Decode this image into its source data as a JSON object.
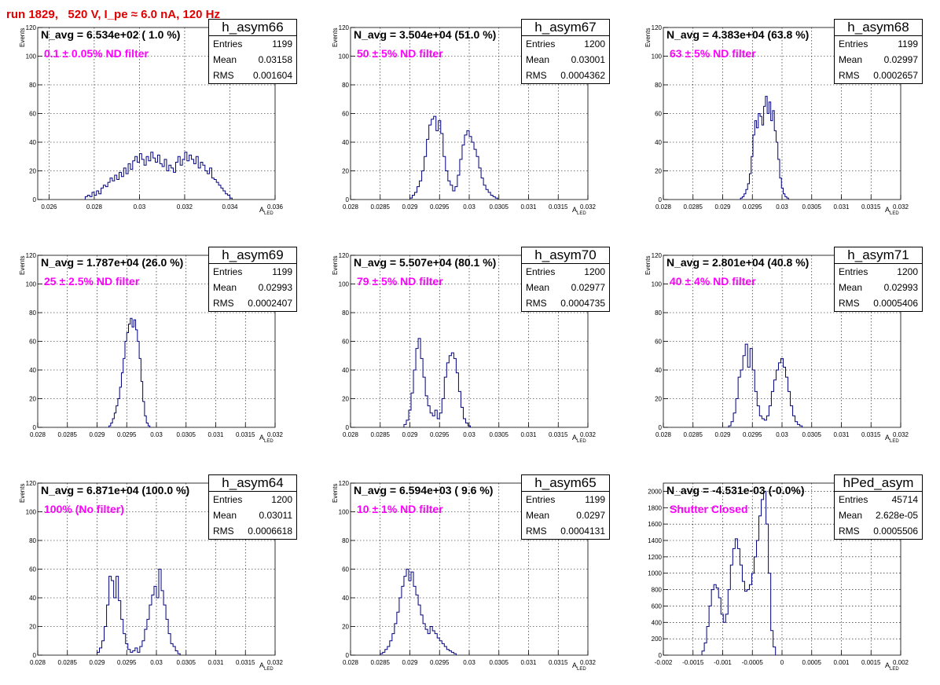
{
  "header": {
    "run_title": "run 1829,   520 V, I_pe ≈ 6.0 nA, 120 Hz"
  },
  "colors": {
    "title": "#e00000",
    "filter_text": "#ff00ff",
    "hist_line": "#00007f",
    "grid": "#000000"
  },
  "chart_data": [
    {
      "type": "histogram",
      "name": "h_asym66",
      "navg": "N_avg = 6.534e+02 ( 1.0 %)",
      "filter": "0.1 ± 0.05% ND filter",
      "stats": {
        "entries": "1199",
        "mean": "0.03158",
        "rms": "0.001604"
      },
      "stat_labels": {
        "entries": "Entries",
        "mean": "Mean",
        "rms": "RMS"
      },
      "xlabel": "A",
      "xlabel_sub": "LED",
      "ylabel": "Events",
      "xlim": [
        0.0255,
        0.036
      ],
      "ylim": [
        0,
        120
      ],
      "xticks": [
        0.026,
        0.028,
        0.03,
        0.032,
        0.034,
        0.036
      ],
      "xtick_labels": [
        "0.026",
        "0.028",
        "0.03",
        "0.032",
        "0.034",
        "0.036"
      ],
      "yticks": [
        0,
        20,
        40,
        60,
        80,
        100,
        120
      ],
      "ytick_labels": [
        "0",
        "20",
        "40",
        "60",
        "80",
        "100",
        "120"
      ],
      "bin_start": 0.0276,
      "bin_width": 0.0001,
      "counts": [
        2,
        3,
        2,
        5,
        3,
        6,
        4,
        8,
        10,
        9,
        12,
        15,
        13,
        17,
        14,
        19,
        16,
        22,
        18,
        25,
        21,
        27,
        30,
        26,
        32,
        28,
        24,
        30,
        27,
        33,
        29,
        26,
        31,
        25,
        23,
        28,
        20,
        24,
        22,
        19,
        26,
        30,
        24,
        28,
        33,
        27,
        31,
        28,
        25,
        30,
        22,
        26,
        24,
        20,
        18,
        22,
        15,
        14,
        12,
        10,
        8,
        6,
        4,
        3,
        1
      ]
    },
    {
      "type": "histogram",
      "name": "h_asym67",
      "navg": "N_avg = 3.504e+04 (51.0 %)",
      "filter": "50 ± 5% ND filter",
      "stats": {
        "entries": "1200",
        "mean": "0.03001",
        "rms": "0.0004362"
      },
      "stat_labels": {
        "entries": "Entries",
        "mean": "Mean",
        "rms": "RMS"
      },
      "xlabel": "A",
      "xlabel_sub": "LED",
      "ylabel": "Events",
      "xlim": [
        0.028,
        0.032
      ],
      "ylim": [
        0,
        120
      ],
      "xticks": [
        0.028,
        0.0285,
        0.029,
        0.0295,
        0.03,
        0.0305,
        0.031,
        0.0315,
        0.032
      ],
      "xtick_labels": [
        "0.028",
        "0.0285",
        "0.029",
        "0.0295",
        "0.03",
        "0.0305",
        "0.031",
        "0.0315",
        "0.032"
      ],
      "yticks": [
        0,
        20,
        40,
        60,
        80,
        100,
        120
      ],
      "ytick_labels": [
        "0",
        "20",
        "40",
        "60",
        "80",
        "100",
        "120"
      ],
      "bin_start": 0.029,
      "bin_width": 4e-05,
      "counts": [
        1,
        3,
        5,
        9,
        13,
        20,
        30,
        42,
        52,
        56,
        58,
        48,
        55,
        46,
        30,
        20,
        13,
        10,
        6,
        9,
        17,
        28,
        38,
        45,
        48,
        44,
        40,
        35,
        30,
        22,
        15,
        10,
        7,
        5,
        3,
        2,
        1
      ]
    },
    {
      "type": "histogram",
      "name": "h_asym68",
      "navg": "N_avg = 4.383e+04 (63.8 %)",
      "filter": "63 ± 5% ND filter",
      "stats": {
        "entries": "1199",
        "mean": "0.02997",
        "rms": "0.0002657"
      },
      "stat_labels": {
        "entries": "Entries",
        "mean": "Mean",
        "rms": "RMS"
      },
      "xlabel": "A",
      "xlabel_sub": "LED",
      "ylabel": "Events",
      "xlim": [
        0.028,
        0.032
      ],
      "ylim": [
        0,
        120
      ],
      "xticks": [
        0.028,
        0.0285,
        0.029,
        0.0295,
        0.03,
        0.0305,
        0.031,
        0.0315,
        0.032
      ],
      "xtick_labels": [
        "0.028",
        "0.0285",
        "0.029",
        "0.0295",
        "0.03",
        "0.0305",
        "0.031",
        "0.0315",
        "0.032"
      ],
      "yticks": [
        0,
        20,
        40,
        60,
        80,
        100,
        120
      ],
      "ytick_labels": [
        "0",
        "20",
        "40",
        "60",
        "80",
        "100",
        "120"
      ],
      "bin_start": 0.0293,
      "bin_width": 3e-05,
      "counts": [
        1,
        2,
        4,
        7,
        11,
        18,
        30,
        45,
        55,
        50,
        60,
        58,
        52,
        65,
        72,
        60,
        68,
        55,
        62,
        48,
        40,
        28,
        15,
        8,
        4,
        2,
        1
      ]
    },
    {
      "type": "histogram",
      "name": "h_asym69",
      "navg": "N_avg = 1.787e+04 (26.0 %)",
      "filter": "25 ± 2.5% ND filter",
      "stats": {
        "entries": "1199",
        "mean": "0.02993",
        "rms": "0.0002407"
      },
      "stat_labels": {
        "entries": "Entries",
        "mean": "Mean",
        "rms": "RMS"
      },
      "xlabel": "A",
      "xlabel_sub": "LED",
      "ylabel": "Events",
      "xlim": [
        0.028,
        0.032
      ],
      "ylim": [
        0,
        120
      ],
      "xticks": [
        0.028,
        0.0285,
        0.029,
        0.0295,
        0.03,
        0.0305,
        0.031,
        0.0315,
        0.032
      ],
      "xtick_labels": [
        "0.028",
        "0.0285",
        "0.029",
        "0.0295",
        "0.03",
        "0.0305",
        "0.031",
        "0.0315",
        "0.032"
      ],
      "yticks": [
        0,
        20,
        40,
        60,
        80,
        100,
        120
      ],
      "ytick_labels": [
        "0",
        "20",
        "40",
        "60",
        "80",
        "100",
        "120"
      ],
      "bin_start": 0.0292,
      "bin_width": 3e-05,
      "counts": [
        1,
        3,
        6,
        10,
        15,
        20,
        28,
        38,
        48,
        60,
        66,
        72,
        76,
        70,
        75,
        68,
        60,
        48,
        32,
        18,
        8,
        3,
        1
      ]
    },
    {
      "type": "histogram",
      "name": "h_asym70",
      "navg": "N_avg = 5.507e+04 (80.1 %)",
      "filter": "79 ± 5% ND filter",
      "stats": {
        "entries": "1200",
        "mean": "0.02977",
        "rms": "0.0004735"
      },
      "stat_labels": {
        "entries": "Entries",
        "mean": "Mean",
        "rms": "RMS"
      },
      "xlabel": "A",
      "xlabel_sub": "LED",
      "ylabel": "Events",
      "xlim": [
        0.028,
        0.032
      ],
      "ylim": [
        0,
        120
      ],
      "xticks": [
        0.028,
        0.0285,
        0.029,
        0.0295,
        0.03,
        0.0305,
        0.031,
        0.0315,
        0.032
      ],
      "xtick_labels": [
        "0.028",
        "0.0285",
        "0.029",
        "0.0295",
        "0.03",
        "0.0305",
        "0.031",
        "0.0315",
        "0.032"
      ],
      "yticks": [
        0,
        20,
        40,
        60,
        80,
        100,
        120
      ],
      "ytick_labels": [
        "0",
        "20",
        "40",
        "60",
        "80",
        "100",
        "120"
      ],
      "bin_start": 0.0289,
      "bin_width": 4e-05,
      "counts": [
        2,
        5,
        12,
        24,
        40,
        55,
        62,
        48,
        35,
        22,
        15,
        10,
        8,
        12,
        6,
        10,
        20,
        35,
        45,
        50,
        52,
        48,
        38,
        25,
        14,
        6,
        3,
        1
      ]
    },
    {
      "type": "histogram",
      "name": "h_asym71",
      "navg": "N_avg = 2.801e+04 (40.8 %)",
      "filter": "40 ± 4% ND filter",
      "stats": {
        "entries": "1200",
        "mean": "0.02993",
        "rms": "0.0005406"
      },
      "stat_labels": {
        "entries": "Entries",
        "mean": "Mean",
        "rms": "RMS"
      },
      "xlabel": "A",
      "xlabel_sub": "LED",
      "ylabel": "Events",
      "xlim": [
        0.028,
        0.032
      ],
      "ylim": [
        0,
        120
      ],
      "xticks": [
        0.028,
        0.0285,
        0.029,
        0.0295,
        0.03,
        0.0305,
        0.031,
        0.0315,
        0.032
      ],
      "xtick_labels": [
        "0.028",
        "0.0285",
        "0.029",
        "0.0295",
        "0.03",
        "0.0305",
        "0.031",
        "0.0315",
        "0.032"
      ],
      "yticks": [
        0,
        20,
        40,
        60,
        80,
        100,
        120
      ],
      "ytick_labels": [
        "0",
        "20",
        "40",
        "60",
        "80",
        "100",
        "120"
      ],
      "bin_start": 0.0291,
      "bin_width": 4e-05,
      "counts": [
        1,
        4,
        10,
        20,
        35,
        40,
        50,
        58,
        42,
        55,
        40,
        25,
        15,
        8,
        6,
        5,
        8,
        15,
        25,
        33,
        40,
        45,
        48,
        42,
        35,
        25,
        15,
        8,
        4,
        2,
        1
      ]
    },
    {
      "type": "histogram",
      "name": "h_asym64",
      "navg": "N_avg = 6.871e+04 (100.0 %)",
      "filter": "100% (No filter)",
      "stats": {
        "entries": "1200",
        "mean": "0.03011",
        "rms": "0.0006618"
      },
      "stat_labels": {
        "entries": "Entries",
        "mean": "Mean",
        "rms": "RMS"
      },
      "xlabel": "A",
      "xlabel_sub": "LED",
      "ylabel": "Events",
      "xlim": [
        0.028,
        0.032
      ],
      "ylim": [
        0,
        120
      ],
      "xticks": [
        0.028,
        0.0285,
        0.029,
        0.0295,
        0.03,
        0.0305,
        0.031,
        0.0315,
        0.032
      ],
      "xtick_labels": [
        "0.028",
        "0.0285",
        "0.029",
        "0.0295",
        "0.03",
        "0.0305",
        "0.031",
        "0.0315",
        "0.032"
      ],
      "yticks": [
        0,
        20,
        40,
        60,
        80,
        100,
        120
      ],
      "ytick_labels": [
        "0",
        "20",
        "40",
        "60",
        "80",
        "100",
        "120"
      ],
      "bin_start": 0.029,
      "bin_width": 4e-05,
      "counts": [
        2,
        5,
        10,
        20,
        35,
        55,
        52,
        40,
        55,
        38,
        25,
        15,
        8,
        4,
        2,
        3,
        5,
        2,
        6,
        10,
        18,
        25,
        35,
        42,
        48,
        40,
        60,
        45,
        35,
        25,
        15,
        8,
        6,
        3,
        1
      ]
    },
    {
      "type": "histogram",
      "name": "h_asym65",
      "navg": "N_avg = 6.594e+03 ( 9.6 %)",
      "filter": "10 ± 1% ND filter",
      "stats": {
        "entries": "1199",
        "mean": "0.0297",
        "rms": "0.0004131"
      },
      "stat_labels": {
        "entries": "Entries",
        "mean": "Mean",
        "rms": "RMS"
      },
      "xlabel": "A",
      "xlabel_sub": "LED",
      "ylabel": "Events",
      "xlim": [
        0.028,
        0.032
      ],
      "ylim": [
        0,
        120
      ],
      "xticks": [
        0.028,
        0.0285,
        0.029,
        0.0295,
        0.03,
        0.0305,
        0.031,
        0.0315,
        0.032
      ],
      "xtick_labels": [
        "0.028",
        "0.0285",
        "0.029",
        "0.0295",
        "0.03",
        "0.0305",
        "0.031",
        "0.0315",
        "0.032"
      ],
      "yticks": [
        0,
        20,
        40,
        60,
        80,
        100,
        120
      ],
      "ytick_labels": [
        "0",
        "20",
        "40",
        "60",
        "80",
        "100",
        "120"
      ],
      "bin_start": 0.0285,
      "bin_width": 4e-05,
      "counts": [
        1,
        2,
        4,
        6,
        10,
        15,
        22,
        30,
        40,
        48,
        55,
        60,
        52,
        58,
        48,
        42,
        35,
        28,
        22,
        18,
        15,
        20,
        17,
        15,
        12,
        10,
        8,
        6,
        4,
        3,
        2,
        1
      ]
    },
    {
      "type": "histogram",
      "name": "hPed_asym",
      "navg": "N_avg = -4.531e-03 (-0.0%)",
      "filter": "Shutter Closed",
      "stats": {
        "entries": "45714",
        "mean": "2.628e-05",
        "rms": "0.0005506"
      },
      "stat_labels": {
        "entries": "Entries",
        "mean": "Mean",
        "rms": "RMS"
      },
      "xlabel": "A",
      "xlabel_sub": "LED",
      "ylabel": "",
      "xlim": [
        -0.002,
        0.002
      ],
      "ylim": [
        0,
        2100
      ],
      "xticks": [
        -0.002,
        -0.0015,
        -0.001,
        -0.0005,
        0,
        0.0005,
        0.001,
        0.0015,
        0.002
      ],
      "xtick_labels": [
        "-0.002",
        "-0.0015",
        "-0.001",
        "-0.0005",
        "0",
        "0.0005",
        "0.001",
        "0.0015",
        "0.002"
      ],
      "yticks": [
        0,
        200,
        400,
        600,
        800,
        1000,
        1200,
        1400,
        1600,
        1800,
        2000
      ],
      "ytick_labels": [
        "0",
        "200",
        "400",
        "600",
        "800",
        "1000",
        "1200",
        "1400",
        "1600",
        "1800",
        "2000"
      ],
      "bin_start": -0.00135,
      "bin_width": 4e-05,
      "counts": [
        50,
        150,
        350,
        600,
        800,
        860,
        820,
        700,
        500,
        400,
        500,
        800,
        1100,
        1300,
        1420,
        1300,
        1100,
        900,
        780,
        800,
        860,
        1000,
        1200,
        1400,
        1700,
        1900,
        2000,
        1600,
        1000,
        300,
        100
      ]
    }
  ]
}
